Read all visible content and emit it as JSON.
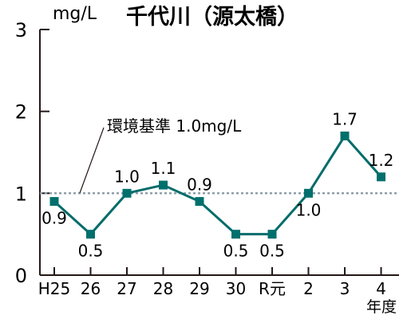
{
  "chart_data": {
    "type": "line",
    "title": "千代川（源太橋）",
    "ylabel": "mg/L",
    "xlabel": "年度",
    "categories": [
      "H25",
      "26",
      "27",
      "28",
      "29",
      "30",
      "R元",
      "2",
      "3",
      "4"
    ],
    "series": [
      {
        "values": [
          0.9,
          0.5,
          1.0,
          1.1,
          0.9,
          0.5,
          0.5,
          1.0,
          1.7,
          1.2
        ]
      }
    ],
    "data_labels": [
      "0.9",
      "0.5",
      "1.0",
      "1.1",
      "0.9",
      "0.5",
      "0.5",
      "1.0",
      "1.7",
      "1.2"
    ],
    "label_side": [
      "below",
      "below",
      "above",
      "above",
      "above",
      "below",
      "below",
      "below",
      "above",
      "above"
    ],
    "ylim": [
      0,
      3
    ],
    "yticks": [
      0,
      1,
      2,
      3
    ],
    "ytick_labels": [
      "0",
      "1",
      "2",
      "3"
    ],
    "reference_line": {
      "value": 1.0,
      "label": "環境基準 1.0mg/L"
    },
    "grid": false,
    "colors": {
      "line": "#006c6a",
      "marker": "#00706c",
      "reference": "#8a9aa6",
      "axis": "#231815"
    }
  }
}
